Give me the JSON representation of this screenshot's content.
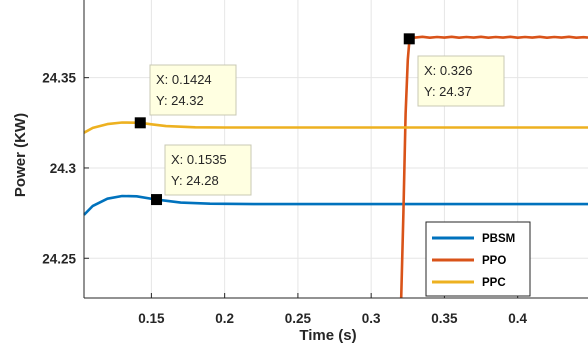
{
  "chart_data": {
    "type": "line",
    "xlabel": "Time (s)",
    "ylabel": "Power (KW)",
    "xlim": [
      0.104,
      0.448
    ],
    "ylim": [
      24.228,
      24.393
    ],
    "xticks": [
      0.15,
      0.2,
      0.25,
      0.3,
      0.35,
      0.4
    ],
    "xtick_labels": [
      "0.15",
      "0.2",
      "0.25",
      "0.3",
      "0.35",
      "0.4"
    ],
    "yticks": [
      24.25,
      24.3,
      24.35
    ],
    "ytick_labels": [
      "24.25",
      "24.3",
      "24.35"
    ],
    "grid": true,
    "legend_position": "bottom-right",
    "series": [
      {
        "name": "PBSM",
        "color": "#0072BD",
        "x": [
          0.104,
          0.11,
          0.12,
          0.13,
          0.14,
          0.1535,
          0.17,
          0.19,
          0.22,
          0.26,
          0.3,
          0.35,
          0.4,
          0.448
        ],
        "y": [
          24.274,
          24.279,
          24.283,
          24.2845,
          24.2843,
          24.2825,
          24.2808,
          24.2802,
          24.28,
          24.28,
          24.28,
          24.28,
          24.28,
          24.28
        ]
      },
      {
        "name": "PPO",
        "color": "#D95319",
        "x": [
          0.3205,
          0.322,
          0.3235,
          0.325,
          0.326,
          0.327,
          0.33,
          0.335,
          0.34,
          0.345,
          0.35,
          0.355,
          0.36,
          0.365,
          0.37,
          0.375,
          0.38,
          0.385,
          0.39,
          0.395,
          0.4,
          0.405,
          0.41,
          0.415,
          0.42,
          0.425,
          0.43,
          0.435,
          0.44,
          0.445,
          0.448
        ],
        "y": [
          24.228,
          24.275,
          24.33,
          24.36,
          24.37,
          24.3725,
          24.3722,
          24.3726,
          24.3721,
          24.3725,
          24.3722,
          24.3726,
          24.3721,
          24.3725,
          24.3722,
          24.3726,
          24.3721,
          24.3725,
          24.3722,
          24.3726,
          24.3721,
          24.3725,
          24.3722,
          24.3726,
          24.3721,
          24.3725,
          24.3722,
          24.3726,
          24.3721,
          24.3724,
          24.3722
        ]
      },
      {
        "name": "PPC",
        "color": "#EDB120",
        "x": [
          0.104,
          0.11,
          0.12,
          0.13,
          0.1424,
          0.15,
          0.16,
          0.18,
          0.2,
          0.25,
          0.3,
          0.35,
          0.4,
          0.448
        ],
        "y": [
          24.3195,
          24.3222,
          24.3243,
          24.3252,
          24.325,
          24.3242,
          24.3232,
          24.3225,
          24.3224,
          24.3224,
          24.3224,
          24.3224,
          24.3224,
          24.3224
        ]
      }
    ],
    "datatips": [
      {
        "x": 0.1424,
        "y": 24.325,
        "line1": "X: 0.1424",
        "line2": "Y: 24.32"
      },
      {
        "x": 0.1535,
        "y": 24.2825,
        "line1": "X: 0.1535",
        "line2": "Y: 24.28"
      },
      {
        "x": 0.326,
        "y": 24.3715,
        "line1": "X: 0.326",
        "line2": "Y: 24.37"
      }
    ]
  }
}
